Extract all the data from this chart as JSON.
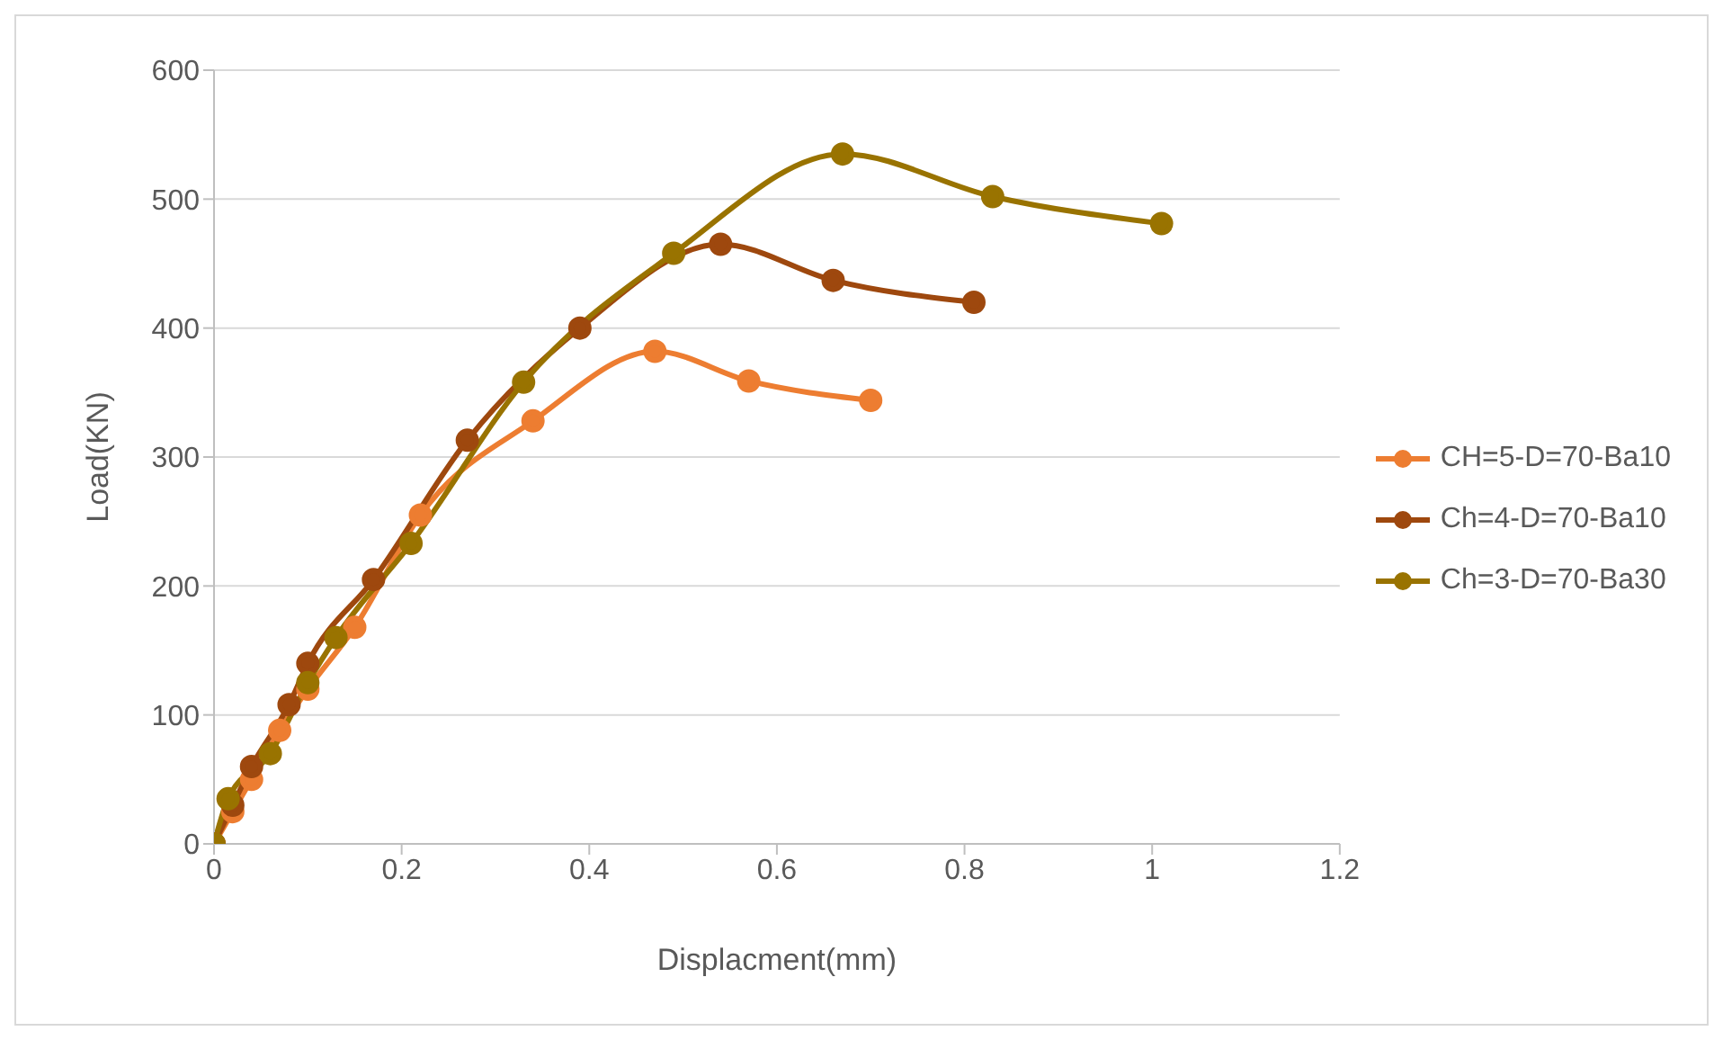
{
  "chart_data": {
    "type": "line",
    "xlabel": "Displacment(mm)",
    "ylabel": "Load(KN)",
    "xlim": [
      0,
      1.2
    ],
    "xticks": [
      0,
      0.2,
      0.4,
      0.6,
      0.8,
      1,
      1.2
    ],
    "ylim": [
      0,
      600
    ],
    "yticks": [
      0,
      100,
      200,
      300,
      400,
      500,
      600
    ],
    "grid": "y",
    "legend": "right",
    "marker": "circle",
    "line_style": "solid",
    "series": [
      {
        "name": "CH=5-D=70-Ba10",
        "color": "#ed7d31",
        "x": [
          0,
          0.02,
          0.04,
          0.07,
          0.1,
          0.15,
          0.22,
          0.34,
          0.47,
          0.57,
          0.7
        ],
        "values": [
          0,
          25,
          50,
          88,
          120,
          168,
          255,
          328,
          382,
          359,
          344
        ]
      },
      {
        "name": "Ch=4-D=70-Ba10",
        "color": "#9e480e",
        "x": [
          0,
          0.02,
          0.04,
          0.08,
          0.1,
          0.17,
          0.27,
          0.39,
          0.54,
          0.66,
          0.81
        ],
        "values": [
          0,
          30,
          60,
          108,
          140,
          205,
          313,
          400,
          465,
          437,
          420
        ]
      },
      {
        "name": "Ch=3-D=70-Ba30",
        "color": "#997300",
        "x": [
          0,
          0.015,
          0.06,
          0.1,
          0.13,
          0.21,
          0.33,
          0.49,
          0.67,
          0.83,
          1.01
        ],
        "values": [
          0,
          35,
          70,
          125,
          160,
          233,
          358,
          458,
          535,
          502,
          481
        ]
      }
    ]
  }
}
